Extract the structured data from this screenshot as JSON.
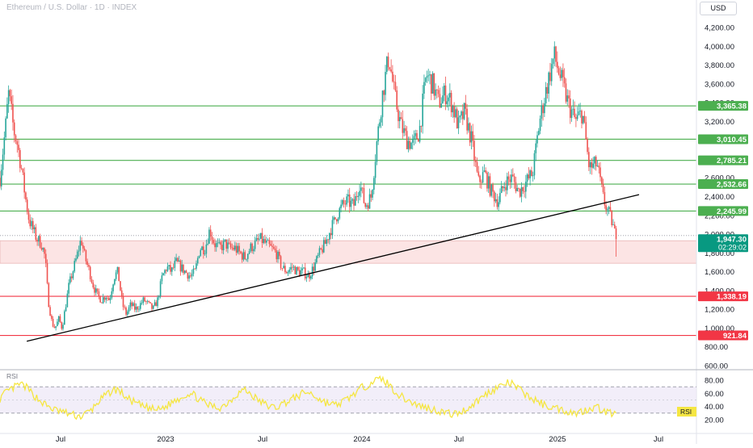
{
  "header": {
    "title": "Ethereum / U.S. Dollar · 1D · INDEX",
    "currency_button": "USD"
  },
  "colors": {
    "up": "#26a69a",
    "down": "#ef5350",
    "support_green": "#4caf50",
    "support_red": "#f23645",
    "zone_fill": "#fce4e4",
    "rsi": "#f5e642",
    "trendline": "#000000"
  },
  "chart_data": [
    {
      "type": "candlestick",
      "x_ticks": [
        "Jul",
        "2023",
        "Jul",
        "2024",
        "Jul",
        "2025",
        "Jul"
      ],
      "y_ticks": [
        "600.00",
        "800.00",
        "1,000.00",
        "1,200.00",
        "1,400.00",
        "1,600.00",
        "1,800.00",
        "2,000.00",
        "2,200.00",
        "2,400.00",
        "2,600.00",
        "2,800.00",
        "3,000.00",
        "3,200.00",
        "3,400.00",
        "3,600.00",
        "3,800.00",
        "4,000.00",
        "4,200.00"
      ],
      "y_tick_values": [
        600,
        800,
        1000,
        1200,
        1400,
        1600,
        1800,
        2000,
        2200,
        2400,
        2600,
        2800,
        3000,
        3200,
        3400,
        3600,
        3800,
        4000,
        4200
      ],
      "ylim": [
        600,
        4200
      ],
      "close_series": [
        {
          "t": 0.0,
          "v": 2600
        },
        {
          "t": 0.4,
          "v": 2900
        },
        {
          "t": 0.8,
          "v": 3200
        },
        {
          "t": 1.1,
          "v": 3500
        },
        {
          "t": 1.4,
          "v": 3350
        },
        {
          "t": 1.8,
          "v": 3100
        },
        {
          "t": 2.3,
          "v": 2950
        },
        {
          "t": 2.8,
          "v": 2700
        },
        {
          "t": 3.3,
          "v": 2400
        },
        {
          "t": 3.8,
          "v": 2150
        },
        {
          "t": 4.3,
          "v": 2050
        },
        {
          "t": 4.8,
          "v": 1950
        },
        {
          "t": 5.4,
          "v": 1900
        },
        {
          "t": 5.9,
          "v": 1750
        },
        {
          "t": 6.3,
          "v": 1300
        },
        {
          "t": 6.8,
          "v": 1050
        },
        {
          "t": 7.2,
          "v": 1000
        },
        {
          "t": 7.7,
          "v": 1100
        },
        {
          "t": 8.1,
          "v": 1000
        },
        {
          "t": 8.5,
          "v": 1200
        },
        {
          "t": 9.0,
          "v": 1450
        },
        {
          "t": 9.5,
          "v": 1600
        },
        {
          "t": 10.0,
          "v": 1750
        },
        {
          "t": 10.6,
          "v": 1950
        },
        {
          "t": 11.1,
          "v": 1750
        },
        {
          "t": 11.7,
          "v": 1600
        },
        {
          "t": 12.2,
          "v": 1450
        },
        {
          "t": 12.7,
          "v": 1350
        },
        {
          "t": 13.3,
          "v": 1300
        },
        {
          "t": 13.8,
          "v": 1350
        },
        {
          "t": 14.3,
          "v": 1300
        },
        {
          "t": 14.9,
          "v": 1550
        },
        {
          "t": 15.4,
          "v": 1600
        },
        {
          "t": 16.0,
          "v": 1250
        },
        {
          "t": 16.5,
          "v": 1150
        },
        {
          "t": 17.1,
          "v": 1250
        },
        {
          "t": 17.7,
          "v": 1200
        },
        {
          "t": 18.3,
          "v": 1250
        },
        {
          "t": 18.8,
          "v": 1300
        },
        {
          "t": 19.4,
          "v": 1250
        },
        {
          "t": 20.0,
          "v": 1200
        },
        {
          "t": 20.6,
          "v": 1300
        },
        {
          "t": 21.2,
          "v": 1550
        },
        {
          "t": 21.8,
          "v": 1650
        },
        {
          "t": 22.4,
          "v": 1600
        },
        {
          "t": 23.0,
          "v": 1700
        },
        {
          "t": 23.6,
          "v": 1650
        },
        {
          "t": 24.2,
          "v": 1600
        },
        {
          "t": 24.9,
          "v": 1550
        },
        {
          "t": 25.5,
          "v": 1600
        },
        {
          "t": 26.1,
          "v": 1850
        },
        {
          "t": 26.8,
          "v": 1850
        },
        {
          "t": 27.4,
          "v": 2050
        },
        {
          "t": 28.0,
          "v": 1900
        },
        {
          "t": 28.7,
          "v": 1850
        },
        {
          "t": 29.4,
          "v": 1900
        },
        {
          "t": 30.0,
          "v": 1850
        },
        {
          "t": 30.7,
          "v": 1850
        },
        {
          "t": 31.3,
          "v": 1800
        },
        {
          "t": 32.0,
          "v": 1750
        },
        {
          "t": 32.7,
          "v": 1850
        },
        {
          "t": 33.4,
          "v": 1900
        },
        {
          "t": 34.0,
          "v": 1950
        },
        {
          "t": 34.7,
          "v": 1900
        },
        {
          "t": 35.4,
          "v": 1850
        },
        {
          "t": 36.1,
          "v": 1800
        },
        {
          "t": 36.8,
          "v": 1650
        },
        {
          "t": 37.5,
          "v": 1600
        },
        {
          "t": 38.2,
          "v": 1650
        },
        {
          "t": 38.9,
          "v": 1600
        },
        {
          "t": 39.6,
          "v": 1600
        },
        {
          "t": 40.3,
          "v": 1550
        },
        {
          "t": 41.0,
          "v": 1650
        },
        {
          "t": 41.8,
          "v": 1800
        },
        {
          "t": 42.5,
          "v": 1900
        },
        {
          "t": 43.2,
          "v": 2050
        },
        {
          "t": 44.0,
          "v": 2200
        },
        {
          "t": 44.7,
          "v": 2300
        },
        {
          "t": 45.4,
          "v": 2350
        },
        {
          "t": 46.2,
          "v": 2300
        },
        {
          "t": 47.0,
          "v": 2550
        },
        {
          "t": 47.7,
          "v": 2300
        },
        {
          "t": 48.5,
          "v": 2400
        },
        {
          "t": 49.2,
          "v": 2950
        },
        {
          "t": 50.0,
          "v": 3500
        },
        {
          "t": 50.8,
          "v": 3900
        },
        {
          "t": 51.6,
          "v": 3450
        },
        {
          "t": 52.4,
          "v": 3150
        },
        {
          "t": 53.2,
          "v": 3000
        },
        {
          "t": 54.0,
          "v": 2950
        },
        {
          "t": 54.8,
          "v": 3100
        },
        {
          "t": 55.7,
          "v": 3700
        },
        {
          "t": 56.5,
          "v": 3600
        },
        {
          "t": 57.3,
          "v": 3400
        },
        {
          "t": 58.2,
          "v": 3500
        },
        {
          "t": 59.0,
          "v": 3400
        },
        {
          "t": 59.9,
          "v": 3150
        },
        {
          "t": 60.7,
          "v": 3300
        },
        {
          "t": 61.6,
          "v": 3000
        },
        {
          "t": 62.5,
          "v": 2550
        },
        {
          "t": 63.3,
          "v": 2650
        },
        {
          "t": 64.2,
          "v": 2450
        },
        {
          "t": 65.1,
          "v": 2350
        },
        {
          "t": 66.0,
          "v": 2550
        },
        {
          "t": 66.9,
          "v": 2600
        },
        {
          "t": 67.8,
          "v": 2450
        },
        {
          "t": 68.7,
          "v": 2550
        },
        {
          "t": 69.6,
          "v": 2650
        },
        {
          "t": 70.5,
          "v": 3200
        },
        {
          "t": 71.4,
          "v": 3550
        },
        {
          "t": 72.4,
          "v": 3900
        },
        {
          "t": 73.3,
          "v": 3650
        },
        {
          "t": 74.2,
          "v": 3400
        },
        {
          "t": 75.2,
          "v": 3200
        },
        {
          "t": 76.1,
          "v": 3300
        },
        {
          "t": 77.0,
          "v": 2700
        },
        {
          "t": 78.0,
          "v": 2750
        },
        {
          "t": 78.9,
          "v": 2350
        },
        {
          "t": 79.9,
          "v": 2150
        },
        {
          "t": 80.5,
          "v": 1947.3
        }
      ],
      "current_low": 1760,
      "horizontal_levels": [
        {
          "value": 3365.38,
          "label": "3,365.38",
          "color": "support_green"
        },
        {
          "value": 3010.45,
          "label": "3,010.45",
          "color": "support_green"
        },
        {
          "value": 2785.21,
          "label": "2,785.21",
          "color": "support_green"
        },
        {
          "value": 2532.66,
          "label": "2,532.66",
          "color": "support_green"
        },
        {
          "value": 2245.99,
          "label": "2,245.99",
          "color": "support_green"
        },
        {
          "value": 1338.19,
          "label": "1,338.19",
          "color": "support_red"
        },
        {
          "value": 921.84,
          "label": "921.84",
          "color": "support_red"
        }
      ],
      "zone": {
        "from": 1690,
        "to": 1930
      },
      "dotted_reference": 1985,
      "trendline": {
        "from": {
          "t": 3.5,
          "v": 860
        },
        "to": {
          "t": 83.5,
          "v": 2420
        }
      },
      "last_price": {
        "label": "1,947.30",
        "countdown": "02:29:02",
        "value": 1947.3
      }
    },
    {
      "type": "line",
      "panel_label": "RSI",
      "legend_label": "RSI",
      "y_ticks": [
        "20.00",
        "40.00",
        "60.00",
        "80.00"
      ],
      "y_tick_values": [
        20,
        40,
        60,
        80
      ],
      "ylim": [
        15,
        90
      ],
      "band": [
        30,
        70
      ],
      "values": [
        52,
        60,
        65,
        70,
        74,
        70,
        62,
        55,
        48,
        42,
        38,
        34,
        33,
        30,
        28,
        26,
        25,
        30,
        35,
        45,
        52,
        58,
        64,
        66,
        60,
        52,
        48,
        44,
        40,
        38,
        36,
        35,
        38,
        42,
        48,
        52,
        56,
        60,
        58,
        52,
        46,
        42,
        40,
        38,
        42,
        48,
        55,
        62,
        66,
        60,
        54,
        48,
        44,
        40,
        38,
        42,
        46,
        50,
        54,
        58,
        62,
        60,
        55,
        50,
        46,
        44,
        42,
        46,
        50,
        56,
        62,
        68,
        72,
        78,
        80,
        82,
        76,
        68,
        60,
        54,
        50,
        46,
        42,
        40,
        38,
        36,
        34,
        32,
        30,
        28,
        30,
        34,
        38,
        44,
        50,
        56,
        62,
        66,
        70,
        74,
        76,
        72,
        66,
        60,
        54,
        50,
        46,
        42,
        40,
        38,
        36,
        34,
        32,
        30,
        32,
        35,
        38,
        40,
        36,
        32,
        30,
        28
      ]
    }
  ]
}
